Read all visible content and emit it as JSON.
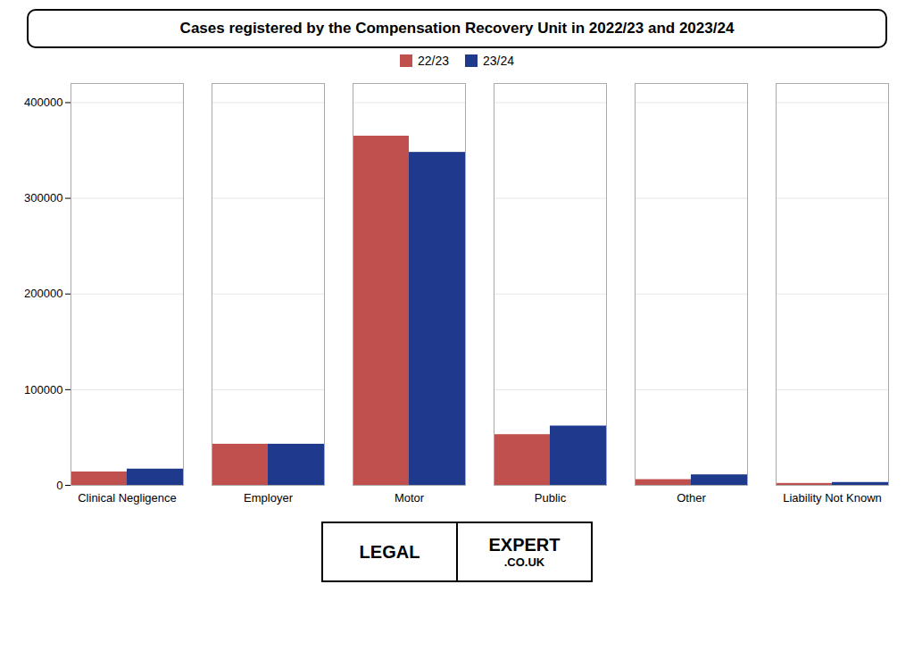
{
  "chart_data": {
    "type": "bar",
    "title": "Cases registered by the Compensation Recovery Unit in 2022/23 and 2023/24",
    "categories": [
      "Clinical Negligence",
      "Employer",
      "Motor",
      "Public",
      "Other",
      "Liability Not Known"
    ],
    "series": [
      {
        "name": "22/23",
        "color": "#c0504d",
        "values": [
          14000,
          43000,
          365000,
          53000,
          6000,
          2000
        ]
      },
      {
        "name": "23/24",
        "color": "#1f3a8c",
        "values": [
          17000,
          43000,
          348000,
          62000,
          11000,
          3000
        ]
      }
    ],
    "ylim": [
      0,
      420000
    ],
    "yticks": [
      0,
      100000,
      200000,
      300000,
      400000
    ],
    "grid": true,
    "legend": "top",
    "annotations": [
      "LEGAL",
      "EXPERT",
      ".CO.UK"
    ]
  }
}
